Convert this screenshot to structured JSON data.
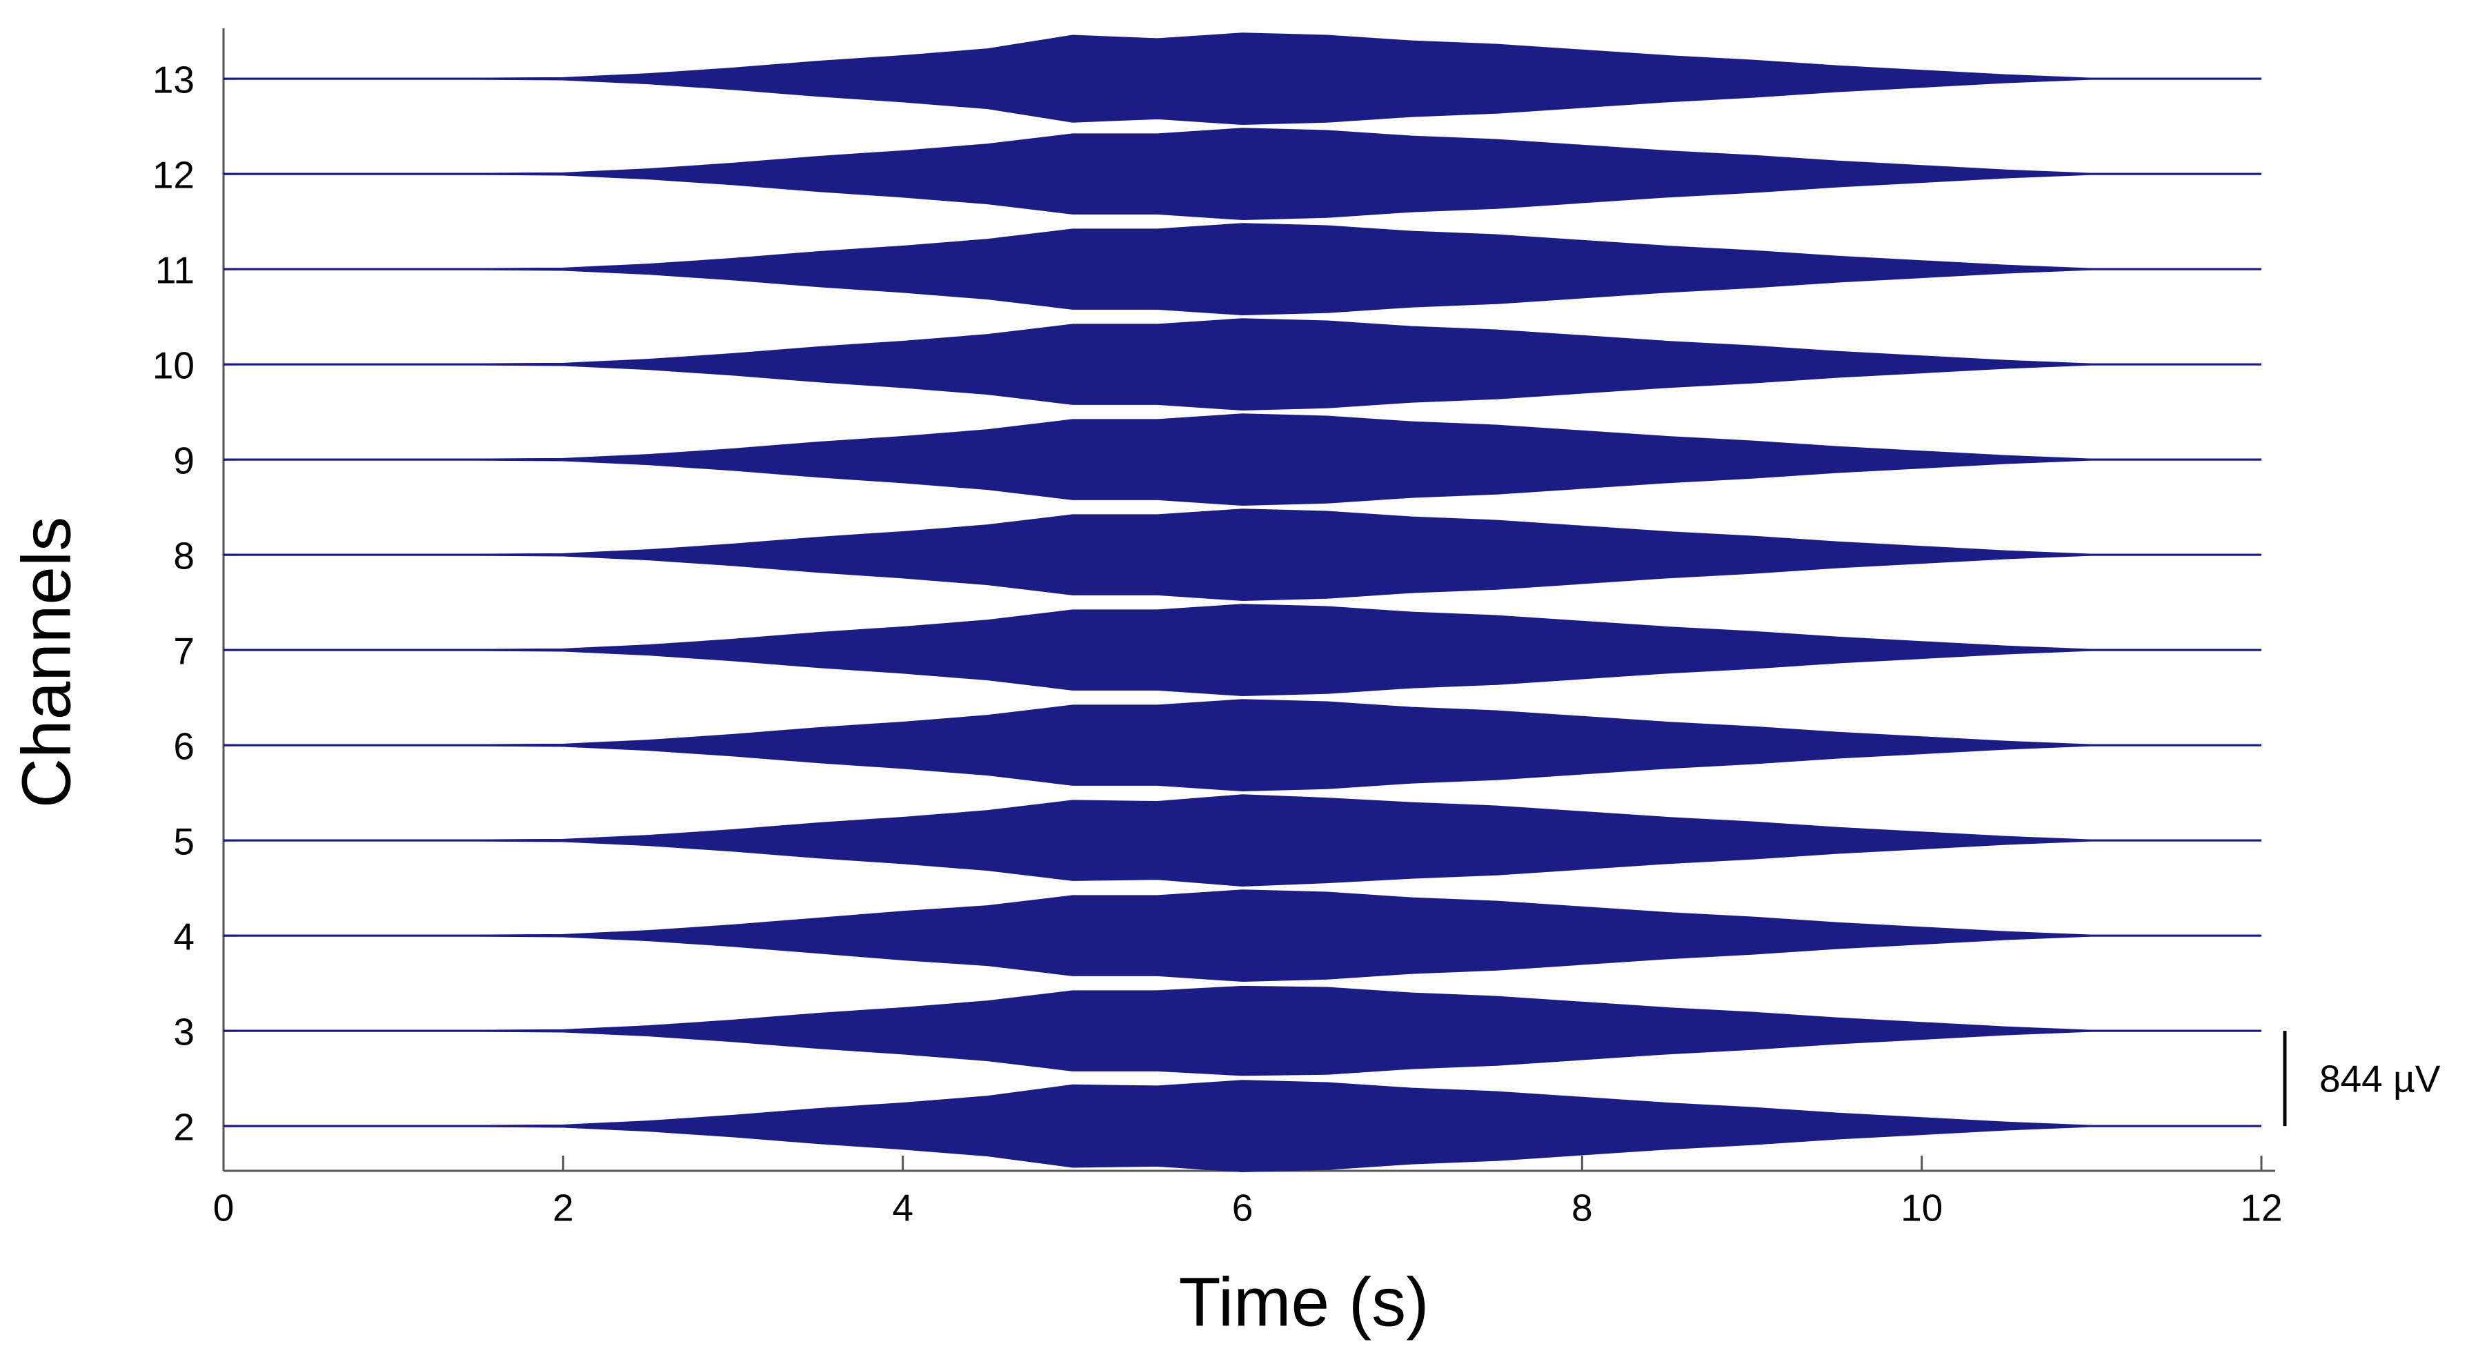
{
  "chart_data": {
    "type": "envelope",
    "xlabel": "Time (s)",
    "ylabel": "Channels",
    "x": [
      0,
      0.5,
      1,
      1.5,
      2,
      2.5,
      3,
      3.5,
      4,
      4.5,
      5,
      5.5,
      6,
      6.5,
      7,
      7.5,
      8,
      8.5,
      9,
      9.5,
      10,
      10.5,
      11,
      11.5,
      12
    ],
    "color": "#1c1c85",
    "series": [
      {
        "values": [
          0,
          0,
          0,
          0,
          5,
          40,
          90,
          150,
          200,
          260,
          360,
          350,
          400,
          380,
          330,
          300,
          250,
          200,
          160,
          110,
          70,
          30,
          0,
          0,
          0
        ]
      },
      {
        "values": [
          0,
          0,
          0,
          0,
          5,
          40,
          90,
          150,
          200,
          260,
          350,
          350,
          390,
          380,
          330,
          300,
          250,
          200,
          160,
          110,
          70,
          30,
          0,
          0,
          0
        ]
      },
      {
        "values": [
          0,
          0,
          0,
          0,
          5,
          40,
          90,
          150,
          210,
          260,
          350,
          350,
          400,
          380,
          330,
          300,
          250,
          200,
          160,
          110,
          70,
          30,
          0,
          0,
          0
        ]
      },
      {
        "values": [
          0,
          0,
          0,
          0,
          5,
          40,
          90,
          150,
          200,
          260,
          350,
          340,
          400,
          370,
          330,
          300,
          250,
          200,
          160,
          110,
          70,
          30,
          0,
          0,
          0
        ]
      },
      {
        "values": [
          0,
          0,
          0,
          0,
          5,
          40,
          90,
          150,
          200,
          260,
          350,
          350,
          400,
          380,
          330,
          300,
          250,
          200,
          160,
          110,
          70,
          30,
          0,
          0,
          0
        ]
      },
      {
        "values": [
          0,
          0,
          0,
          0,
          5,
          40,
          90,
          150,
          200,
          260,
          350,
          350,
          400,
          380,
          330,
          300,
          250,
          200,
          160,
          110,
          70,
          30,
          0,
          0,
          0
        ]
      },
      {
        "values": [
          0,
          0,
          0,
          0,
          5,
          40,
          90,
          150,
          200,
          260,
          350,
          350,
          400,
          380,
          330,
          300,
          250,
          200,
          160,
          110,
          70,
          30,
          0,
          0,
          0
        ]
      },
      {
        "values": [
          0,
          0,
          0,
          0,
          5,
          40,
          90,
          150,
          200,
          260,
          350,
          350,
          400,
          380,
          330,
          300,
          250,
          200,
          160,
          110,
          70,
          30,
          0,
          0,
          0
        ]
      },
      {
        "values": [
          0,
          0,
          0,
          0,
          5,
          40,
          90,
          150,
          200,
          260,
          350,
          350,
          400,
          380,
          330,
          300,
          250,
          200,
          160,
          110,
          70,
          30,
          0,
          0,
          0
        ]
      },
      {
        "values": [
          0,
          0,
          0,
          0,
          5,
          40,
          90,
          150,
          200,
          260,
          350,
          350,
          400,
          380,
          330,
          300,
          250,
          200,
          160,
          110,
          70,
          30,
          0,
          0,
          0
        ]
      },
      {
        "values": [
          0,
          0,
          0,
          0,
          5,
          40,
          90,
          150,
          200,
          260,
          350,
          350,
          400,
          380,
          330,
          300,
          250,
          200,
          160,
          110,
          70,
          30,
          0,
          0,
          0
        ]
      },
      {
        "values": [
          0,
          0,
          0,
          0,
          5,
          40,
          90,
          150,
          200,
          260,
          380,
          350,
          400,
          380,
          330,
          300,
          250,
          200,
          160,
          110,
          70,
          30,
          0,
          0,
          0
        ]
      }
    ],
    "xlim": [
      0,
      12
    ],
    "xticks": [
      0,
      2,
      4,
      6,
      8,
      10,
      12
    ],
    "ylim": [
      1.53,
      13.53
    ],
    "yticks": [
      2,
      3,
      4,
      5,
      6,
      7,
      8,
      9,
      10,
      11,
      12,
      13
    ],
    "scale_bar": {
      "value": 844,
      "label": "844 µV"
    }
  }
}
